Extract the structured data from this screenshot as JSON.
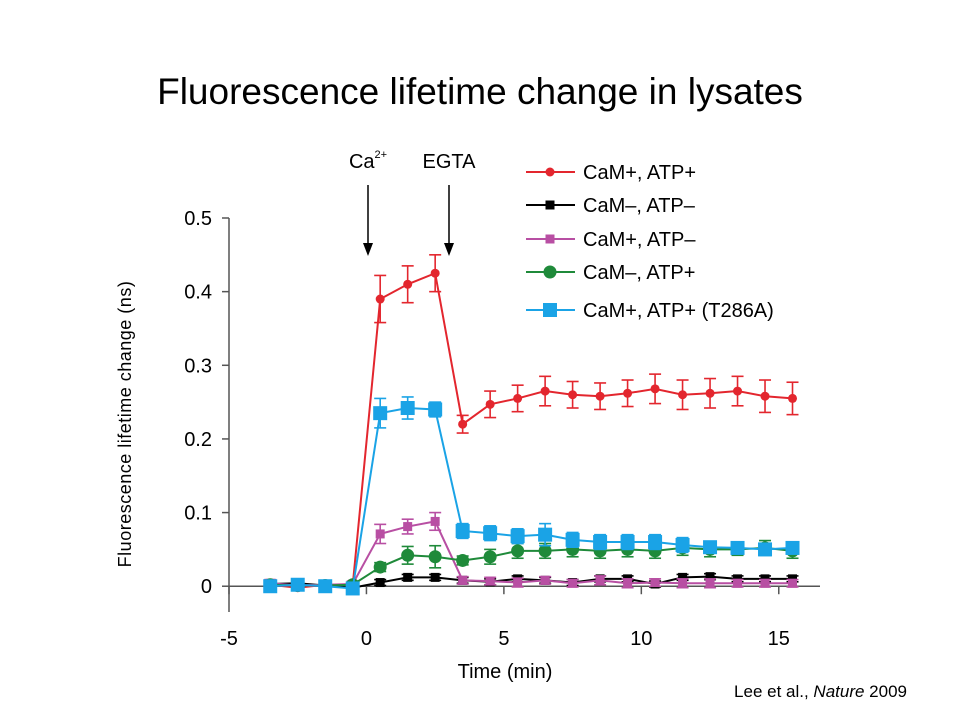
{
  "title": "Fluorescence lifetime change in lysates",
  "credit": {
    "authors": "Lee et al., ",
    "journal": "Nature",
    "year": " 2009"
  },
  "annotations": [
    {
      "text": "Ca",
      "superscript": "2+",
      "x": 0
    },
    {
      "text": "EGTA",
      "superscript": "",
      "x": 3
    }
  ],
  "colors": {
    "red": "#e3262e",
    "black": "#000000",
    "magenta": "#b84fa3",
    "green": "#1f8a3a",
    "cyan": "#1aa3e6"
  },
  "chart_data": {
    "type": "line",
    "xlabel": "Time (min)",
    "ylabel": "Fluorescence lifetime change (ns)",
    "xlim": [
      -5,
      16.5
    ],
    "ylim": [
      -0.035,
      0.5
    ],
    "xticks": [
      -5,
      0,
      5,
      10,
      15
    ],
    "xtick_labels": [
      "-5",
      "0",
      "5",
      "10",
      "15"
    ],
    "yticks": [
      0,
      0.1,
      0.2,
      0.3,
      0.4,
      0.5
    ],
    "ytick_labels": [
      "0",
      "0.1",
      "0.2",
      "0.3",
      "0.4",
      "0.5"
    ],
    "legend_position": "top-right",
    "series": [
      {
        "name": "CaM+, ATP+",
        "color": "#e3262e",
        "marker": "circle",
        "marker_size": "small",
        "points": [
          [
            -3.5,
            0.002
          ],
          [
            -2.5,
            -0.002
          ],
          [
            -1.5,
            0.002
          ],
          [
            -0.5,
            0.001
          ],
          [
            0.5,
            0.39
          ],
          [
            1.5,
            0.41
          ],
          [
            2.5,
            0.425
          ],
          [
            3.5,
            0.22
          ],
          [
            4.5,
            0.247
          ],
          [
            5.5,
            0.255
          ],
          [
            6.5,
            0.265
          ],
          [
            7.5,
            0.26
          ],
          [
            8.5,
            0.258
          ],
          [
            9.5,
            0.262
          ],
          [
            10.5,
            0.268
          ],
          [
            11.5,
            0.26
          ],
          [
            12.5,
            0.262
          ],
          [
            13.5,
            0.265
          ],
          [
            14.5,
            0.258
          ],
          [
            15.5,
            0.255
          ]
        ],
        "errors": [
          0.004,
          0.004,
          0.004,
          0.004,
          0.032,
          0.025,
          0.025,
          0.012,
          0.018,
          0.018,
          0.02,
          0.018,
          0.018,
          0.018,
          0.02,
          0.02,
          0.02,
          0.02,
          0.022,
          0.022
        ]
      },
      {
        "name": "CaM–, ATP–",
        "color": "#000000",
        "marker": "square",
        "marker_size": "small",
        "points": [
          [
            -3.5,
            0.003
          ],
          [
            -2.5,
            0.004
          ],
          [
            -1.5,
            0.001
          ],
          [
            -0.5,
            -0.002
          ],
          [
            0.5,
            0.005
          ],
          [
            1.5,
            0.012
          ],
          [
            2.5,
            0.012
          ],
          [
            3.5,
            0.008
          ],
          [
            4.5,
            0.006
          ],
          [
            5.5,
            0.01
          ],
          [
            6.5,
            0.008
          ],
          [
            7.5,
            0.005
          ],
          [
            8.5,
            0.01
          ],
          [
            9.5,
            0.01
          ],
          [
            10.5,
            0.003
          ],
          [
            11.5,
            0.012
          ],
          [
            12.5,
            0.013
          ],
          [
            13.5,
            0.01
          ],
          [
            14.5,
            0.01
          ],
          [
            15.5,
            0.01
          ]
        ],
        "errors": [
          0.004,
          0.004,
          0.004,
          0.004,
          0.004,
          0.004,
          0.004,
          0.004,
          0.004,
          0.004,
          0.004,
          0.004,
          0.004,
          0.004,
          0.004,
          0.004,
          0.004,
          0.004,
          0.004,
          0.004
        ]
      },
      {
        "name": "CaM+, ATP–",
        "color": "#b84fa3",
        "marker": "square",
        "marker_size": "small",
        "points": [
          [
            -3.5,
            0.004
          ],
          [
            -2.5,
            0.001
          ],
          [
            -1.5,
            0.002
          ],
          [
            -0.5,
            0.003
          ],
          [
            0.5,
            0.071
          ],
          [
            1.5,
            0.081
          ],
          [
            2.5,
            0.088
          ],
          [
            3.5,
            0.008
          ],
          [
            4.5,
            0.007
          ],
          [
            5.5,
            0.005
          ],
          [
            6.5,
            0.008
          ],
          [
            7.5,
            0.004
          ],
          [
            8.5,
            0.008
          ],
          [
            9.5,
            0.004
          ],
          [
            10.5,
            0.005
          ],
          [
            11.5,
            0.004
          ],
          [
            12.5,
            0.004
          ],
          [
            13.5,
            0.004
          ],
          [
            14.5,
            0.004
          ],
          [
            15.5,
            0.004
          ]
        ],
        "errors": [
          0.005,
          0.004,
          0.004,
          0.004,
          0.013,
          0.01,
          0.012,
          0.005,
          0.005,
          0.006,
          0.005,
          0.005,
          0.006,
          0.006,
          0.005,
          0.006,
          0.006,
          0.005,
          0.005,
          0.005
        ]
      },
      {
        "name": "CaM–, ATP+",
        "color": "#1f8a3a",
        "marker": "circle",
        "marker_size": "large",
        "points": [
          [
            -3.5,
            0.002
          ],
          [
            -2.5,
            0.001
          ],
          [
            -1.5,
            0.001
          ],
          [
            -0.5,
            0.002
          ],
          [
            0.5,
            0.026
          ],
          [
            1.5,
            0.042
          ],
          [
            2.5,
            0.04
          ],
          [
            3.5,
            0.035
          ],
          [
            4.5,
            0.04
          ],
          [
            5.5,
            0.048
          ],
          [
            6.5,
            0.048
          ],
          [
            7.5,
            0.05
          ],
          [
            8.5,
            0.048
          ],
          [
            9.5,
            0.05
          ],
          [
            10.5,
            0.048
          ],
          [
            11.5,
            0.052
          ],
          [
            12.5,
            0.05
          ],
          [
            13.5,
            0.05
          ],
          [
            14.5,
            0.052
          ],
          [
            15.5,
            0.048
          ]
        ],
        "errors": [
          0.004,
          0.004,
          0.004,
          0.004,
          0.006,
          0.012,
          0.015,
          0.006,
          0.01,
          0.01,
          0.01,
          0.01,
          0.01,
          0.01,
          0.01,
          0.01,
          0.01,
          0.008,
          0.01,
          0.01
        ]
      },
      {
        "name": "CaM+, ATP+ (T286A)",
        "color": "#1aa3e6",
        "marker": "square",
        "marker_size": "large",
        "points": [
          [
            -3.5,
            0.0
          ],
          [
            -2.5,
            0.002
          ],
          [
            -1.5,
            0.0
          ],
          [
            -0.5,
            -0.003
          ],
          [
            0.5,
            0.235
          ],
          [
            1.5,
            0.242
          ],
          [
            2.5,
            0.24
          ],
          [
            3.5,
            0.075
          ],
          [
            4.5,
            0.072
          ],
          [
            5.5,
            0.068
          ],
          [
            6.5,
            0.07
          ],
          [
            7.5,
            0.063
          ],
          [
            8.5,
            0.06
          ],
          [
            9.5,
            0.06
          ],
          [
            10.5,
            0.06
          ],
          [
            11.5,
            0.056
          ],
          [
            12.5,
            0.053
          ],
          [
            13.5,
            0.052
          ],
          [
            14.5,
            0.05
          ],
          [
            15.5,
            0.052
          ]
        ],
        "errors": [
          0.005,
          0.005,
          0.005,
          0.008,
          0.02,
          0.015,
          0.01,
          0.01,
          0.01,
          0.01,
          0.015,
          0.01,
          0.01,
          0.01,
          0.01,
          0.01,
          0.008,
          0.008,
          0.008,
          0.008
        ]
      }
    ]
  }
}
